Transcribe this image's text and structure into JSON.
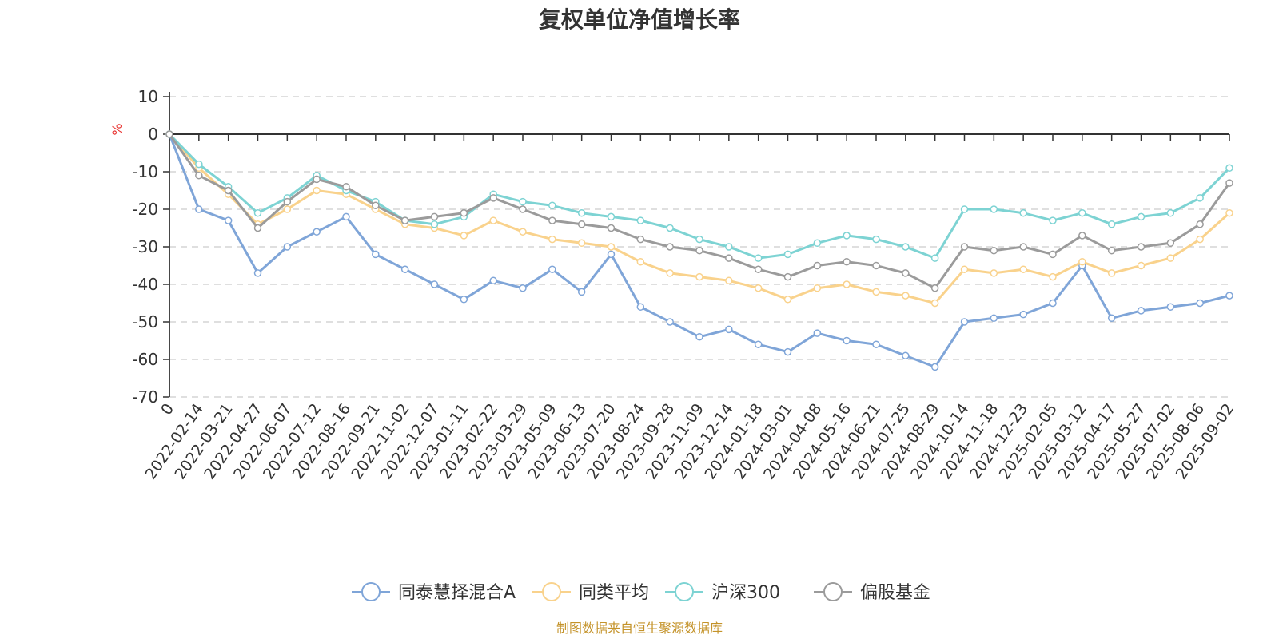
{
  "chart_data": {
    "type": "line",
    "title": "复权单位净值增长率",
    "y_unit": "%",
    "ylim": [
      -70,
      10
    ],
    "y_ticks": [
      10,
      0,
      -10,
      -20,
      -30,
      -40,
      -50,
      -60,
      -70
    ],
    "grid": true,
    "legend_position": "bottom",
    "source": "制图数据来自恒生聚源数据库",
    "x_tick_labels": [
      "0",
      "2022-02-14",
      "2022-03-21",
      "2022-04-27",
      "2022-06-07",
      "2022-07-12",
      "2022-08-16",
      "2022-09-21",
      "2022-11-02",
      "2022-12-07",
      "2023-01-11",
      "2023-02-22",
      "2023-03-29",
      "2023-05-09",
      "2023-06-13",
      "2023-07-20",
      "2023-08-24",
      "2023-09-28",
      "2023-11-09",
      "2023-12-14",
      "2024-01-18",
      "2024-03-01",
      "2024-04-08",
      "2024-05-16",
      "2024-06-21",
      "2024-07-25",
      "2024-08-29",
      "2024-10-14",
      "2024-11-18",
      "2024-12-23",
      "2025-02-05",
      "2025-03-12",
      "2025-04-17",
      "2025-05-27",
      "2025-07-02",
      "2025-08-06",
      "2025-09-02"
    ],
    "x": [
      "0",
      "2022-02-14",
      "2022-03-21",
      "2022-04-27",
      "2022-06-07",
      "2022-07-12",
      "2022-08-16",
      "2022-09-21",
      "2022-11-02",
      "2022-12-07",
      "2023-01-11",
      "2023-02-22",
      "2023-03-29",
      "2023-05-09",
      "2023-06-13",
      "2023-07-20",
      "2023-08-24",
      "2023-09-28",
      "2023-11-09",
      "2023-12-14",
      "2024-01-18",
      "2024-03-01",
      "2024-04-08",
      "2024-05-16",
      "2024-06-21",
      "2024-07-25",
      "2024-08-29",
      "2024-10-14",
      "2024-11-18",
      "2024-12-23",
      "2025-02-05",
      "2025-03-12",
      "2025-04-17",
      "2025-05-27",
      "2025-07-02",
      "2025-08-06",
      "2025-09-02"
    ],
    "series": [
      {
        "name": "同泰慧择混合A",
        "color": "#7fa5d8",
        "values": [
          0,
          -20,
          -23,
          -37,
          -30,
          -26,
          -22,
          -32,
          -36,
          -40,
          -44,
          -39,
          -41,
          -36,
          -42,
          -32,
          -46,
          -50,
          -54,
          -52,
          -56,
          -58,
          -53,
          -55,
          -56,
          -59,
          -62,
          -50,
          -49,
          -48,
          -45,
          -35,
          -49,
          -47,
          -46,
          -45,
          -43
        ]
      },
      {
        "name": "同类平均",
        "color": "#f9d28c",
        "values": [
          0,
          -9,
          -16,
          -24,
          -20,
          -15,
          -16,
          -20,
          -24,
          -25,
          -27,
          -23,
          -26,
          -28,
          -29,
          -30,
          -34,
          -37,
          -38,
          -39,
          -41,
          -44,
          -41,
          -40,
          -42,
          -43,
          -45,
          -36,
          -37,
          -36,
          -38,
          -34,
          -37,
          -35,
          -33,
          -28,
          -21
        ]
      },
      {
        "name": "沪深300",
        "color": "#7dd3d3",
        "values": [
          0,
          -8,
          -14,
          -21,
          -17,
          -11,
          -15,
          -18,
          -23,
          -24,
          -22,
          -16,
          -18,
          -19,
          -21,
          -22,
          -23,
          -25,
          -28,
          -30,
          -33,
          -32,
          -29,
          -27,
          -28,
          -30,
          -33,
          -20,
          -20,
          -21,
          -23,
          -21,
          -24,
          -22,
          -21,
          -17,
          -9
        ]
      },
      {
        "name": "偏股基金",
        "color": "#9b9b9b",
        "values": [
          0,
          -11,
          -15,
          -25,
          -18,
          -12,
          -14,
          -19,
          -23,
          -22,
          -21,
          -17,
          -20,
          -23,
          -24,
          -25,
          -28,
          -30,
          -31,
          -33,
          -36,
          -38,
          -35,
          -34,
          -35,
          -37,
          -41,
          -30,
          -31,
          -30,
          -32,
          -27,
          -31,
          -30,
          -29,
          -24,
          -13
        ]
      }
    ]
  }
}
